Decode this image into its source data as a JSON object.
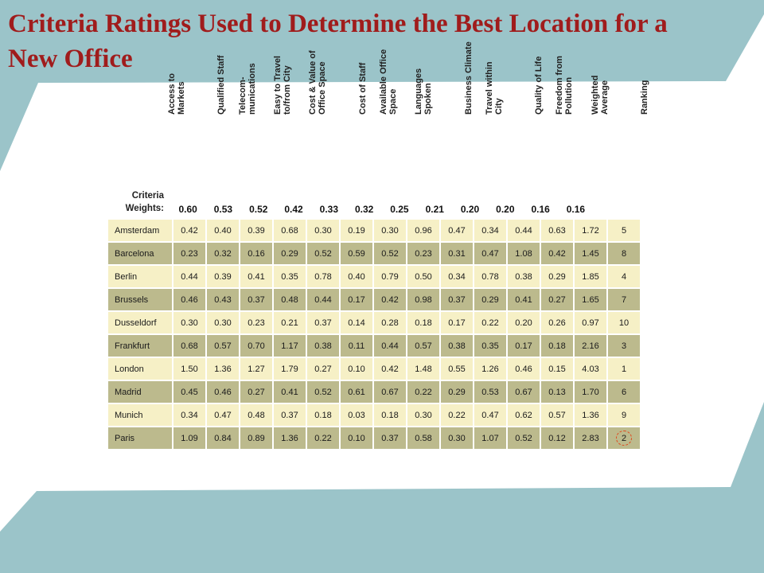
{
  "title": "Criteria Ratings Used to Determine the Best Location for a New Office",
  "criteria_label_1": "Criteria",
  "criteria_label_2": "Weights:",
  "columns": [
    "Access to\nMarkets",
    "Qualified Staff",
    "Telecom-\nmunications",
    "Easy to Travel\nto/from City",
    "Cost & Value of\nOffice Space",
    "Cost of Staff",
    "Available Office\nSpace",
    "Languages\nSpoken",
    "Business Climate",
    "Travel within\nCity",
    "Quality of Life",
    "Freedom from\nPollution",
    "Weighted\nAverage",
    "Ranking"
  ],
  "weights": [
    "0.60",
    "0.53",
    "0.52",
    "0.42",
    "0.33",
    "0.32",
    "0.25",
    "0.21",
    "0.20",
    "0.20",
    "0.16",
    "0.16",
    "",
    ""
  ],
  "rows": [
    {
      "city": "Amsterdam",
      "values": [
        "0.42",
        "0.40",
        "0.39",
        "0.68",
        "0.30",
        "0.19",
        "0.30",
        "0.96",
        "0.47",
        "0.34",
        "0.44",
        "0.63",
        "1.72",
        "5"
      ]
    },
    {
      "city": "Barcelona",
      "values": [
        "0.23",
        "0.32",
        "0.16",
        "0.29",
        "0.52",
        "0.59",
        "0.52",
        "0.23",
        "0.31",
        "0.47",
        "1.08",
        "0.42",
        "1.45",
        "8"
      ]
    },
    {
      "city": "Berlin",
      "values": [
        "0.44",
        "0.39",
        "0.41",
        "0.35",
        "0.78",
        "0.40",
        "0.79",
        "0.50",
        "0.34",
        "0.78",
        "0.38",
        "0.29",
        "1.85",
        "4"
      ]
    },
    {
      "city": "Brussels",
      "values": [
        "0.46",
        "0.43",
        "0.37",
        "0.48",
        "0.44",
        "0.17",
        "0.42",
        "0.98",
        "0.37",
        "0.29",
        "0.41",
        "0.27",
        "1.65",
        "7"
      ]
    },
    {
      "city": "Dusseldorf",
      "values": [
        "0.30",
        "0.30",
        "0.23",
        "0.21",
        "0.37",
        "0.14",
        "0.28",
        "0.18",
        "0.17",
        "0.22",
        "0.20",
        "0.26",
        "0.97",
        "10"
      ]
    },
    {
      "city": "Frankfurt",
      "values": [
        "0.68",
        "0.57",
        "0.70",
        "1.17",
        "0.38",
        "0.11",
        "0.44",
        "0.57",
        "0.38",
        "0.35",
        "0.17",
        "0.18",
        "2.16",
        "3"
      ]
    },
    {
      "city": "London",
      "values": [
        "1.50",
        "1.36",
        "1.27",
        "1.79",
        "0.27",
        "0.10",
        "0.42",
        "1.48",
        "0.55",
        "1.26",
        "0.46",
        "0.15",
        "4.03",
        "1"
      ]
    },
    {
      "city": "Madrid",
      "values": [
        "0.45",
        "0.46",
        "0.27",
        "0.41",
        "0.52",
        "0.61",
        "0.67",
        "0.22",
        "0.29",
        "0.53",
        "0.67",
        "0.13",
        "1.70",
        "6"
      ]
    },
    {
      "city": "Munich",
      "values": [
        "0.34",
        "0.47",
        "0.48",
        "0.37",
        "0.18",
        "0.03",
        "0.18",
        "0.30",
        "0.22",
        "0.47",
        "0.62",
        "0.57",
        "1.36",
        "9"
      ]
    },
    {
      "city": "Paris",
      "values": [
        "1.09",
        "0.84",
        "0.89",
        "1.36",
        "0.22",
        "0.10",
        "0.37",
        "0.58",
        "0.30",
        "1.07",
        "0.52",
        "0.12",
        "2.83",
        "2"
      ]
    }
  ],
  "highlighted_rank_row": 9,
  "colors": {
    "title": "#a01c1c",
    "teal": "#9bc4c9",
    "row_light": "#f6f0c6",
    "row_dark": "#bcba8d",
    "highlight": "#e0471c"
  }
}
